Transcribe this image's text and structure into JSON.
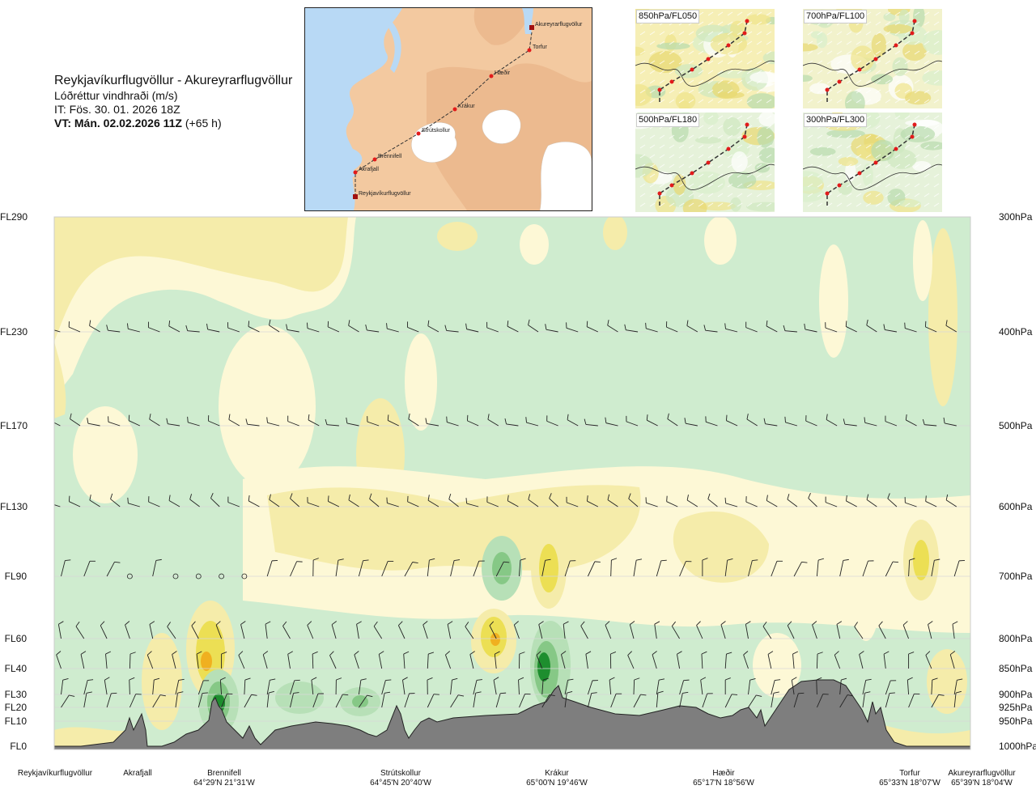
{
  "header": {
    "route": "Reykjavíkurflugvöllur - Akureyrarflugvöllur",
    "parameter": "Lóðréttur vindhraði (m/s)",
    "issue_time": "IT: Fös. 30. 01. 2026 18Z",
    "valid_prefix": "VT: Mán. 02.02.2026 11Z",
    "valid_suffix": "(+65 h)"
  },
  "overview_map": {
    "route_points": [
      {
        "name": "Akureyrarflugvöllur"
      },
      {
        "name": "Torfur"
      },
      {
        "name": "Hæðir"
      },
      {
        "name": "Krákur"
      },
      {
        "name": "Strútskollur"
      },
      {
        "name": "Brennifell"
      },
      {
        "name": "Akrafjall"
      },
      {
        "name": "Reykjavíkurflugvöllur"
      }
    ],
    "colors": {
      "sea": "#b8d9f5",
      "land": "#f3c9a0",
      "glacier": "#ffffff",
      "route": "#333333",
      "point": "#e21b1b"
    }
  },
  "level_maps": [
    {
      "label": "850hPa/FL050"
    },
    {
      "label": "700hPa/FL100"
    },
    {
      "label": "500hPa/FL180"
    },
    {
      "label": "300hPa/FL300"
    }
  ],
  "flight_levels": [
    "FL290",
    "FL230",
    "FL170",
    "FL130",
    "FL90",
    "FL60",
    "FL40",
    "FL30",
    "FL20",
    "FL10",
    "FL0"
  ],
  "pressure_levels": [
    "300hPa",
    "400hPa",
    "500hPa",
    "600hPa",
    "700hPa",
    "800hPa",
    "850hPa",
    "900hPa",
    "925hPa",
    "950hPa",
    "1000hPa"
  ],
  "stations": [
    {
      "name": "Reykjavíkurflugvöllur",
      "coord": ""
    },
    {
      "name": "Akrafjall",
      "coord": ""
    },
    {
      "name": "Brennifell",
      "coord": "64°29'N 21°31'W"
    },
    {
      "name": "Strútskollur",
      "coord": "64°45'N 20°40'W"
    },
    {
      "name": "Krákur",
      "coord": "65°00'N 19°46'W"
    },
    {
      "name": "Hæðir",
      "coord": "65°17'N 18°56'W"
    },
    {
      "name": "Torfur",
      "coord": "65°33'N 18°07'W"
    },
    {
      "name": "Akureyrarflugvöllur",
      "coord": "65°39'N 18°04'W"
    }
  ],
  "colors": {
    "downdraft_weak": "#fdf8d6",
    "downdraft": "#f5ecaa",
    "downdraft_strong": "#ecdf54",
    "downdraft_peak": "#f0b020",
    "updraft_weak": "#eef8e8",
    "updraft": "#cfeccf",
    "updraft_mid": "#b7e0b7",
    "updraft_strong": "#86c886",
    "updraft_peak": "#1e8e2e",
    "terrain": "#7e7e7e",
    "gridline": "#d8d8d8",
    "barb": "#222222"
  }
}
